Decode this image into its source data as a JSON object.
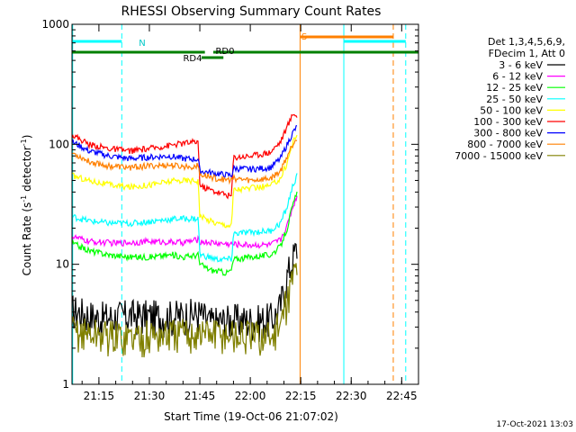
{
  "chart_data": {
    "type": "line",
    "title": "RHESSI Observing Summary Count Rates",
    "xlabel": "Start Time (19-Oct-06 21:07:02)",
    "ylabel_main": "Count Rate (s",
    "ylabel_sup1": "-1",
    "ylabel_mid": " detector",
    "ylabel_sup2": "-1",
    "ylabel_end": ")",
    "yscale": "log",
    "xlim": [
      1267,
      1370
    ],
    "ylim": [
      1,
      1000
    ],
    "x_ticks": [
      {
        "value": 1275,
        "label": "21:15"
      },
      {
        "value": 1290,
        "label": "21:30"
      },
      {
        "value": 1305,
        "label": "21:45"
      },
      {
        "value": 1320,
        "label": "22:00"
      },
      {
        "value": 1335,
        "label": "22:15"
      },
      {
        "value": 1350,
        "label": "22:30"
      },
      {
        "value": 1365,
        "label": "22:45"
      }
    ],
    "y_ticks": [
      {
        "value": 1,
        "label": "1"
      },
      {
        "value": 10,
        "label": "10"
      },
      {
        "value": 100,
        "label": "100"
      },
      {
        "value": 1000,
        "label": "1000"
      }
    ],
    "legend_header": [
      "Det 1,3,4,5,6,9,",
      "FDecim 1, Att 0"
    ],
    "series": [
      {
        "name": "3 - 6 keV",
        "color": "#000000",
        "points": [
          [
            1267,
            4.2
          ],
          [
            1275,
            3.6
          ],
          [
            1285,
            3.8
          ],
          [
            1295,
            3.7
          ],
          [
            1305,
            3.9
          ],
          [
            1308,
            3.3
          ],
          [
            1315,
            3.5
          ],
          [
            1322,
            3.4
          ],
          [
            1327,
            3.6
          ],
          [
            1329,
            4.5
          ],
          [
            1331,
            8
          ],
          [
            1333,
            12
          ],
          [
            1334,
            14
          ]
        ]
      },
      {
        "name": "6 - 12 keV",
        "color": "#ff00ff",
        "points": [
          [
            1267,
            17
          ],
          [
            1272,
            15.5
          ],
          [
            1280,
            15
          ],
          [
            1290,
            15.5
          ],
          [
            1300,
            15.2
          ],
          [
            1304.5,
            16
          ],
          [
            1305,
            15.5
          ],
          [
            1310,
            15
          ],
          [
            1313,
            14.8
          ],
          [
            1320,
            14.5
          ],
          [
            1326,
            14.5
          ],
          [
            1329,
            16
          ],
          [
            1331,
            21
          ],
          [
            1333,
            32
          ],
          [
            1334,
            38
          ]
        ]
      },
      {
        "name": "12 - 25 keV",
        "color": "#00ff00",
        "points": [
          [
            1267,
            15
          ],
          [
            1272,
            13
          ],
          [
            1278,
            12
          ],
          [
            1284,
            11.5
          ],
          [
            1290,
            11.5
          ],
          [
            1297,
            12
          ],
          [
            1300,
            11.5
          ],
          [
            1304.5,
            12
          ],
          [
            1305,
            10
          ],
          [
            1308,
            9
          ],
          [
            1313,
            8.5
          ],
          [
            1314.5,
            9
          ],
          [
            1315,
            11
          ],
          [
            1320,
            11.5
          ],
          [
            1326,
            12
          ],
          [
            1329,
            14
          ],
          [
            1331,
            20
          ],
          [
            1333,
            33
          ],
          [
            1334,
            40
          ]
        ]
      },
      {
        "name": "25 - 50 keV",
        "color": "#00ffff",
        "points": [
          [
            1267,
            25
          ],
          [
            1272,
            23
          ],
          [
            1278,
            22
          ],
          [
            1285,
            22
          ],
          [
            1292,
            23
          ],
          [
            1298,
            24
          ],
          [
            1304.5,
            24
          ],
          [
            1305,
            12
          ],
          [
            1310,
            11
          ],
          [
            1314.5,
            11
          ],
          [
            1315,
            18
          ],
          [
            1320,
            18.5
          ],
          [
            1326,
            19
          ],
          [
            1329,
            22
          ],
          [
            1331,
            30
          ],
          [
            1333,
            48
          ],
          [
            1334,
            55
          ]
        ]
      },
      {
        "name": "50 - 100 keV",
        "color": "#ffff00",
        "points": [
          [
            1267,
            55
          ],
          [
            1272,
            50
          ],
          [
            1278,
            46
          ],
          [
            1284,
            44
          ],
          [
            1290,
            46
          ],
          [
            1296,
            49
          ],
          [
            1300,
            50
          ],
          [
            1304.5,
            50
          ],
          [
            1305,
            25
          ],
          [
            1310,
            22
          ],
          [
            1314.5,
            21
          ],
          [
            1315,
            42
          ],
          [
            1320,
            43
          ],
          [
            1326,
            45
          ],
          [
            1329,
            52
          ],
          [
            1331,
            70
          ],
          [
            1333,
            110
          ],
          [
            1334,
            125
          ]
        ]
      },
      {
        "name": "100 - 300 keV",
        "color": "#ff0000",
        "points": [
          [
            1267,
            120
          ],
          [
            1272,
            100
          ],
          [
            1278,
            92
          ],
          [
            1284,
            88
          ],
          [
            1290,
            92
          ],
          [
            1296,
            98
          ],
          [
            1300,
            102
          ],
          [
            1304.5,
            105
          ],
          [
            1305,
            45
          ],
          [
            1310,
            40
          ],
          [
            1314.5,
            37
          ],
          [
            1315,
            78
          ],
          [
            1320,
            80
          ],
          [
            1326,
            86
          ],
          [
            1329,
            105
          ],
          [
            1331,
            140
          ],
          [
            1333,
            185
          ],
          [
            1334,
            165
          ]
        ]
      },
      {
        "name": "300 - 800 keV",
        "color": "#0000ff",
        "points": [
          [
            1267,
            105
          ],
          [
            1272,
            88
          ],
          [
            1278,
            80
          ],
          [
            1284,
            76
          ],
          [
            1290,
            78
          ],
          [
            1296,
            80
          ],
          [
            1300,
            76
          ],
          [
            1304.5,
            75
          ],
          [
            1305,
            60
          ],
          [
            1310,
            57
          ],
          [
            1314.5,
            55
          ],
          [
            1315,
            63
          ],
          [
            1320,
            62
          ],
          [
            1326,
            64
          ],
          [
            1329,
            76
          ],
          [
            1331,
            100
          ],
          [
            1333,
            130
          ],
          [
            1334,
            140
          ]
        ]
      },
      {
        "name": "800 - 7000 keV",
        "color": "#ff8000",
        "points": [
          [
            1267,
            85
          ],
          [
            1272,
            72
          ],
          [
            1278,
            66
          ],
          [
            1284,
            64
          ],
          [
            1290,
            66
          ],
          [
            1296,
            67
          ],
          [
            1300,
            65
          ],
          [
            1304.5,
            66
          ],
          [
            1305,
            56
          ],
          [
            1310,
            52
          ],
          [
            1314.5,
            50
          ],
          [
            1315,
            52
          ],
          [
            1320,
            50
          ],
          [
            1326,
            52
          ],
          [
            1329,
            60
          ],
          [
            1331,
            80
          ],
          [
            1333,
            105
          ],
          [
            1334,
            115
          ]
        ]
      },
      {
        "name": "7000 - 15000 keV",
        "color": "#808000",
        "points": [
          [
            1267,
            2.8
          ],
          [
            1275,
            2.6
          ],
          [
            1285,
            2.5
          ],
          [
            1295,
            2.6
          ],
          [
            1305,
            2.7
          ],
          [
            1315,
            2.6
          ],
          [
            1322,
            2.5
          ],
          [
            1327,
            2.6
          ],
          [
            1329,
            3.2
          ],
          [
            1331,
            5
          ],
          [
            1333,
            8.5
          ],
          [
            1334,
            10
          ]
        ]
      }
    ],
    "vertical_lines": [
      {
        "value": 1267.2,
        "color": "#00ffff",
        "style": "solid"
      },
      {
        "value": 1281.8,
        "color": "#00ffff",
        "style": "dashed"
      },
      {
        "value": 1334.8,
        "color": "#ff8000",
        "style": "solid"
      },
      {
        "value": 1347.8,
        "color": "#00ffff",
        "style": "solid"
      },
      {
        "value": 1362.5,
        "color": "#ff8000",
        "style": "dashed"
      },
      {
        "value": 1366.2,
        "color": "#00ffff",
        "style": "dashed"
      }
    ],
    "intervals": [
      {
        "label": "N",
        "color": "#00ffff",
        "segments": [
          [
            1267.2,
            1281.8
          ],
          [
            1347.8,
            1366.2
          ]
        ],
        "level": 1
      },
      {
        "label": "S",
        "color": "#ff8000",
        "segments": [
          [
            1334.8,
            1362.5
          ]
        ],
        "level": 0
      },
      {
        "label": "RD0",
        "color": "#008000",
        "segments": [
          [
            1267,
            1306.5
          ],
          [
            1309,
            1370
          ]
        ],
        "level": 2
      },
      {
        "label": "RD4",
        "color": "#008000",
        "segments": [
          [
            1305.5,
            1312
          ]
        ],
        "level": 3
      }
    ]
  },
  "footer": {
    "timestamp": "17-Oct-2021 13:03"
  }
}
